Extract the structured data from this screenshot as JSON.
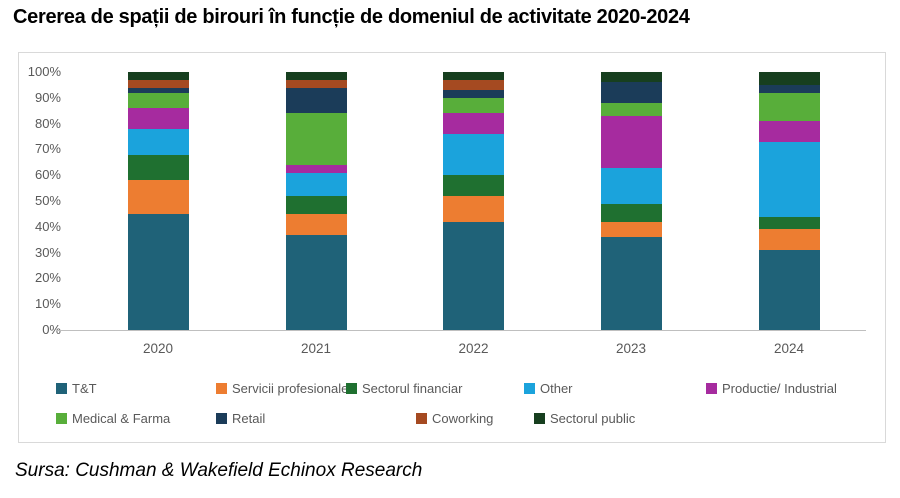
{
  "title": "Cererea de spații de birouri în funcție de domeniul de activitate 2020-2024",
  "source": "Sursa: Cushman & Wakefield Echinox Research",
  "colors": {
    "axis_line": "#bfbfbf",
    "axis_text": "#595959",
    "box_border": "#d9d9d9"
  },
  "chart_data": {
    "type": "bar",
    "stacked": true,
    "title": "Cererea de spații de birouri în funcție de domeniul de activitate 2020-2024",
    "xlabel": "",
    "ylabel": "",
    "ylim": [
      0,
      100
    ],
    "yticks": [
      "0%",
      "10%",
      "20%",
      "30%",
      "40%",
      "50%",
      "60%",
      "70%",
      "80%",
      "90%",
      "100%"
    ],
    "grid": false,
    "legend_position": "bottom",
    "categories": [
      "2020",
      "2021",
      "2022",
      "2023",
      "2024"
    ],
    "series": [
      {
        "name": "T&T",
        "color": "#1f6278",
        "values": [
          45,
          37,
          42,
          36,
          31
        ]
      },
      {
        "name": "Servicii profesionale",
        "color": "#ed7d31",
        "values": [
          13,
          8,
          10,
          6,
          8
        ]
      },
      {
        "name": "Sectorul financiar",
        "color": "#1f7030",
        "values": [
          10,
          7,
          8,
          7,
          5
        ]
      },
      {
        "name": "Other",
        "color": "#1ba3dc",
        "values": [
          10,
          9,
          16,
          14,
          29
        ]
      },
      {
        "name": "Productie/ Industrial",
        "color": "#a62b9f",
        "values": [
          8,
          3,
          8,
          20,
          8
        ]
      },
      {
        "name": "Medical & Farma",
        "color": "#58ae3a",
        "values": [
          6,
          20,
          6,
          5,
          11
        ]
      },
      {
        "name": "Retail",
        "color": "#1b3c59",
        "values": [
          2,
          10,
          3,
          8,
          3
        ]
      },
      {
        "name": "Coworking",
        "color": "#a54a21",
        "values": [
          3,
          3,
          4,
          0,
          0
        ]
      },
      {
        "name": "Sectorul public",
        "color": "#173f1f",
        "values": [
          3,
          3,
          3,
          4,
          5
        ]
      }
    ]
  }
}
